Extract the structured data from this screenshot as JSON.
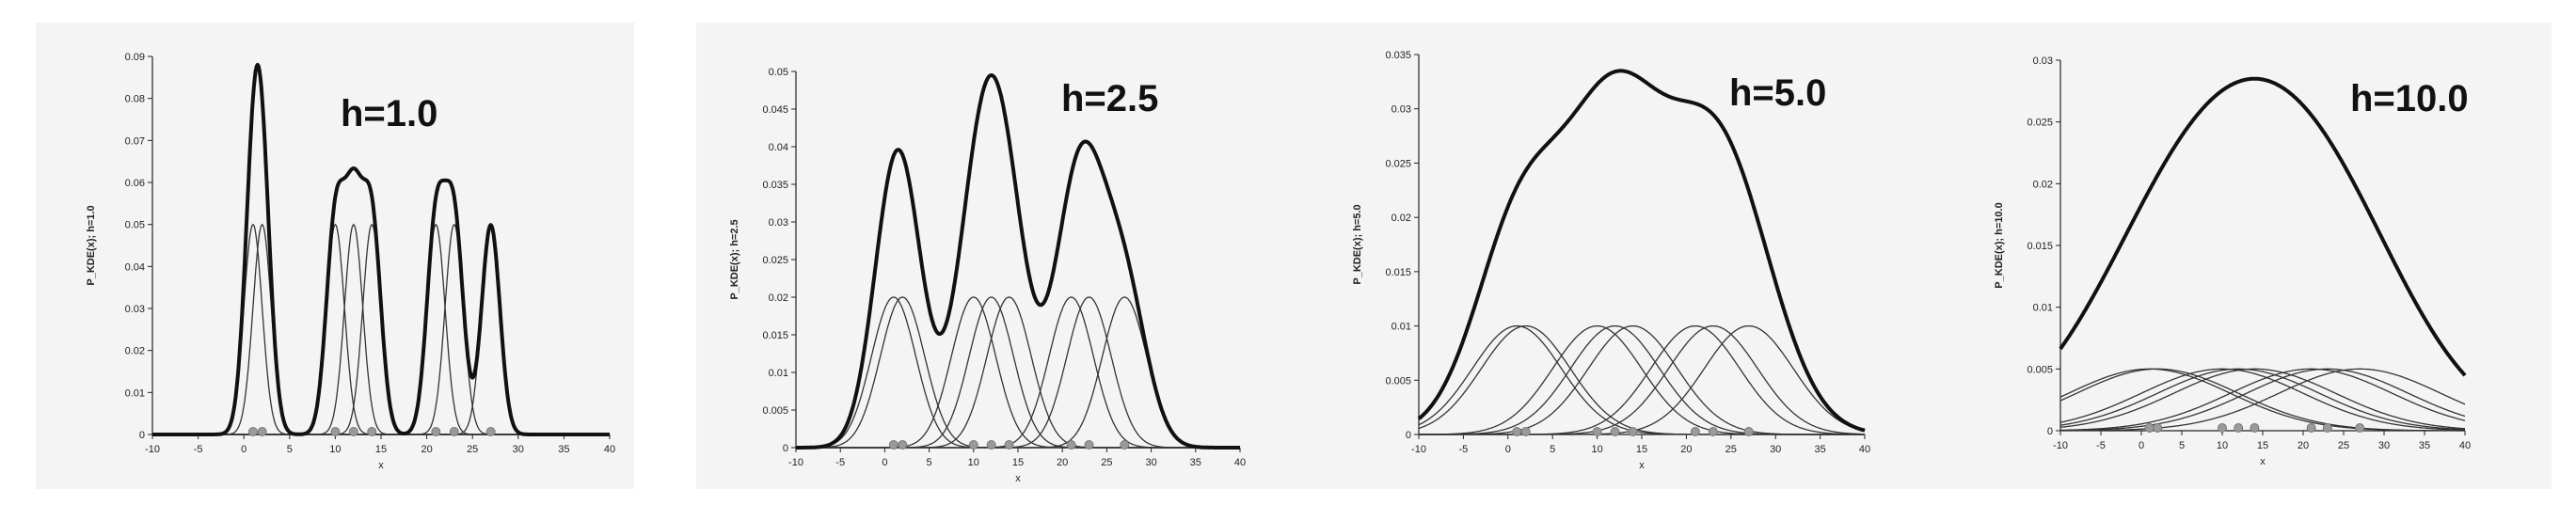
{
  "chart_data": [
    {
      "type": "line",
      "label": "h=1.0",
      "h": 1.0,
      "ylabel": "P_KDE(x); h=1.0",
      "xlabel": "x",
      "xlim": [
        -10,
        40
      ],
      "ylim": [
        0,
        0.09
      ],
      "xticks": [
        "-10",
        "-5",
        "0",
        "5",
        "10",
        "15",
        "20",
        "25",
        "30",
        "35",
        "40"
      ],
      "yticks": [
        "0",
        "0.01",
        "0.02",
        "0.03",
        "0.04",
        "0.05",
        "0.06",
        "0.07",
        "0.08",
        "0.09"
      ],
      "samples": [
        1,
        2,
        10,
        12,
        14,
        21,
        23,
        27
      ],
      "kernel_peak": 0.05,
      "kde_peak": 0.088
    },
    {
      "type": "line",
      "label": "h=2.5",
      "h": 2.5,
      "ylabel": "P_KDE(x); h=2.5",
      "xlabel": "x",
      "xlim": [
        -10,
        40
      ],
      "ylim": [
        0,
        0.05
      ],
      "xticks": [
        "-10",
        "-5",
        "0",
        "5",
        "10",
        "15",
        "20",
        "25",
        "30",
        "35",
        "40"
      ],
      "yticks": [
        "0",
        "0.005",
        "0.01",
        "0.015",
        "0.02",
        "0.025",
        "0.03",
        "0.035",
        "0.04",
        "0.045",
        "0.05"
      ],
      "samples": [
        1,
        2,
        10,
        12,
        14,
        21,
        23,
        27
      ],
      "kernel_peak": 0.02,
      "kde_peak": 0.0495
    },
    {
      "type": "line",
      "label": "h=5.0",
      "h": 5.0,
      "ylabel": "P_KDE(x); h=5.0",
      "xlabel": "x",
      "xlim": [
        -10,
        40
      ],
      "ylim": [
        0,
        0.035
      ],
      "xticks": [
        "-10",
        "-5",
        "0",
        "5",
        "10",
        "15",
        "20",
        "25",
        "30",
        "35",
        "40"
      ],
      "yticks": [
        "0",
        "0.005",
        "0.01",
        "0.015",
        "0.02",
        "0.025",
        "0.03",
        "0.035"
      ],
      "samples": [
        1,
        2,
        10,
        12,
        14,
        21,
        23,
        27
      ],
      "kernel_peak": 0.01,
      "kde_peak": 0.0335
    },
    {
      "type": "line",
      "label": "h=10.0",
      "h": 10.0,
      "ylabel": "P_KDE(x); h=10.0",
      "xlabel": "x",
      "xlim": [
        -10,
        40
      ],
      "ylim": [
        0,
        0.03
      ],
      "xticks": [
        "-10",
        "-5",
        "0",
        "5",
        "10",
        "15",
        "20",
        "25",
        "30",
        "35",
        "40"
      ],
      "yticks": [
        "0",
        "0.005",
        "0.01",
        "0.015",
        "0.02",
        "0.025",
        "0.03"
      ],
      "samples": [
        1,
        2,
        10,
        12,
        14,
        21,
        23,
        27
      ],
      "kernel_peak": 0.005,
      "kde_peak": 0.0285
    }
  ]
}
